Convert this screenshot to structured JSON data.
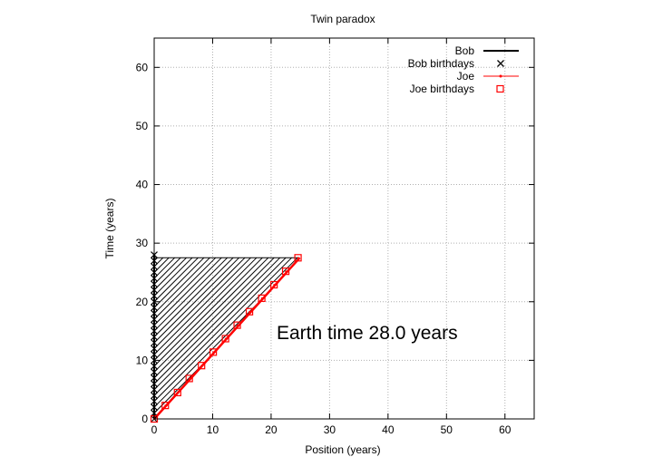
{
  "chart_data": {
    "type": "line",
    "title": "Twin paradox",
    "xlabel": "Position (years)",
    "ylabel": "Time (years)",
    "xlim": [
      0,
      65
    ],
    "ylim": [
      0,
      65
    ],
    "xticks": [
      0,
      10,
      20,
      30,
      40,
      50,
      60
    ],
    "yticks": [
      0,
      10,
      20,
      30,
      40,
      50,
      60
    ],
    "grid": true,
    "legend_position": "top-right",
    "annotation": "Earth time 28.0 years",
    "series": [
      {
        "name": "Bob",
        "kind": "line",
        "color": "#000000",
        "x": [
          0,
          0
        ],
        "y": [
          0,
          28
        ]
      },
      {
        "name": "Bob birthdays",
        "kind": "points",
        "marker": "x",
        "color": "#000000",
        "x": [
          0,
          0,
          0,
          0,
          0,
          0,
          0,
          0,
          0,
          0,
          0,
          0,
          0,
          0,
          0,
          0,
          0,
          0,
          0,
          0,
          0,
          0,
          0,
          0,
          0,
          0,
          0,
          0,
          0
        ],
        "y": [
          0,
          1,
          2,
          3,
          4,
          5,
          6,
          7,
          8,
          9,
          10,
          11,
          12,
          13,
          14,
          15,
          16,
          17,
          18,
          19,
          20,
          21,
          22,
          23,
          24,
          25,
          26,
          27,
          28
        ]
      },
      {
        "name": "Joe",
        "kind": "line",
        "color": "#ff0000",
        "x": [
          0,
          24.9
        ],
        "y": [
          0,
          27.5
        ]
      },
      {
        "name": "Joe birthdays",
        "kind": "points",
        "marker": "square",
        "color": "#ff0000",
        "x": [
          0,
          1.9,
          4.0,
          6.0,
          8.1,
          10.1,
          12.2,
          14.2,
          16.3,
          18.4,
          20.5,
          22.5,
          24.6
        ],
        "y": [
          0,
          2.3,
          4.5,
          6.9,
          9.1,
          11.4,
          13.7,
          16.0,
          18.3,
          20.6,
          22.9,
          25.2,
          27.5
        ]
      }
    ],
    "signals": {
      "color": "#000000",
      "from_y": [
        0,
        1,
        2,
        3,
        4,
        5,
        6,
        7,
        8,
        9,
        10,
        11,
        12,
        13,
        14,
        15,
        16,
        17,
        18,
        19,
        20,
        21,
        22,
        23,
        24,
        25,
        26,
        27,
        28
      ],
      "joe_speed": 0.905
    }
  }
}
